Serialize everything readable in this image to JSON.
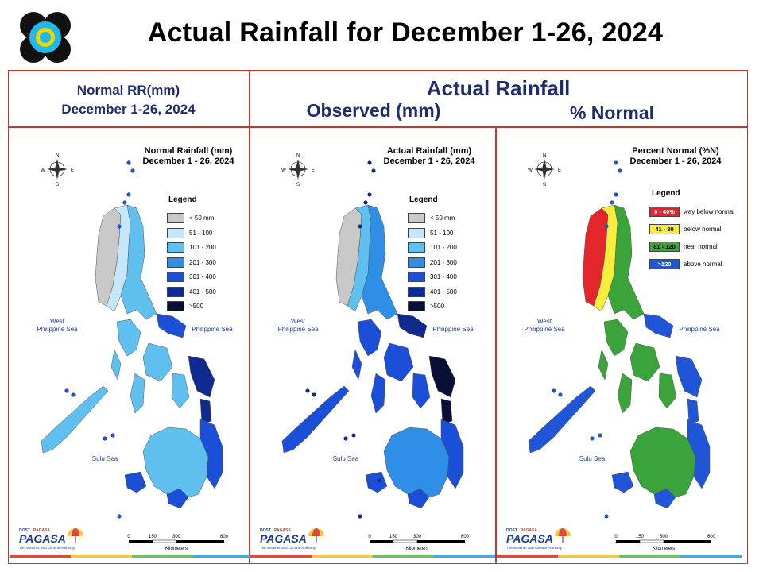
{
  "page": {
    "title": "Actual Rainfall for December 1-26, 2024"
  },
  "headers": {
    "normal_line1": "Normal RR(mm)",
    "normal_line2": "December 1-26, 2024",
    "actual": "Actual Rainfall",
    "observed": "Observed (mm)",
    "percent": "% Normal"
  },
  "panels": [
    {
      "id": "normal",
      "title_line1": "Normal Rainfall (mm)",
      "title_line2": "December 1 - 26, 2024",
      "legend_title": "Legend",
      "legend": [
        {
          "label": "< 50 mm",
          "color": "#c8c8c8"
        },
        {
          "label": "51 - 100",
          "color": "#c6e6fa"
        },
        {
          "label": "101 - 200",
          "color": "#5fc0f0"
        },
        {
          "label": "201 - 300",
          "color": "#2f8fe6"
        },
        {
          "label": "301 - 400",
          "color": "#1b4fd8"
        },
        {
          "label": "401 - 500",
          "color": "#0f2a8f"
        },
        {
          "label": ">500",
          "color": "#0a0f35"
        }
      ],
      "sea_west_line1": "West",
      "sea_west_line2": "Philippine Sea",
      "sea_east": "Philippine Sea",
      "sea_sulu": "Sulu Sea"
    },
    {
      "id": "observed",
      "title_line1": "Actual Rainfall (mm)",
      "title_line2": "December 1 - 26, 2024",
      "legend_title": "Legend",
      "legend": [
        {
          "label": "< 50 mm",
          "color": "#c8c8c8"
        },
        {
          "label": "51 - 100",
          "color": "#c6e6fa"
        },
        {
          "label": "101 - 200",
          "color": "#5fc0f0"
        },
        {
          "label": "201 - 300",
          "color": "#2f8fe6"
        },
        {
          "label": "301 - 400",
          "color": "#1b4fd8"
        },
        {
          "label": "401 - 500",
          "color": "#0f2a8f"
        },
        {
          "label": ">500",
          "color": "#0a0f35"
        }
      ],
      "sea_west_line1": "West",
      "sea_west_line2": "Philippine Sea",
      "sea_east": "Philippine Sea",
      "sea_sulu": "Sulu Sea"
    },
    {
      "id": "percent",
      "title_line1": "Percent Normal (%N)",
      "title_line2": "December 1 - 26, 2024",
      "legend_title": "Legend",
      "legend": [
        {
          "range": "0 - 40%",
          "label": "way below normal",
          "color": "#e3262b",
          "text_color": "#ffffff"
        },
        {
          "range": "41 - 80",
          "label": "below normal",
          "color": "#f7ee3b",
          "text_color": "#000000"
        },
        {
          "range": "81 - 120",
          "label": "near normal",
          "color": "#3aa33a",
          "text_color": "#000000"
        },
        {
          "range": ">120",
          "label": "above normal",
          "color": "#1f55d6",
          "text_color": "#ffffff"
        }
      ],
      "sea_west_line1": "West",
      "sea_west_line2": "Philippine Sea",
      "sea_east": "Philippine Sea",
      "sea_sulu": "Sulu Sea"
    }
  ],
  "compass": {
    "n": "N",
    "s": "S",
    "w": "W",
    "e": "E"
  },
  "scale_bar": {
    "ticks": [
      "0",
      "150",
      "300",
      "600"
    ],
    "unit": "Kilometers"
  },
  "footer": {
    "agency_top": "DOST",
    "agency_small": "PAGASA",
    "brand": "PAGASA",
    "tagline": "The Weather and Climate Authority"
  },
  "footer_colors": [
    "#d94c3d",
    "#f2c744",
    "#6cbf6c",
    "#4aa6dc"
  ],
  "map_colors": {
    "normal": {
      "north_west": "#c8c8c8",
      "north_mid": "#c6e6fa",
      "north_east": "#5fc0f0",
      "central": "#5fc0f0",
      "east": "#1b4fd8",
      "samar": "#0f2a8f",
      "palawan": "#5fc0f0",
      "mindanao": "#5fc0f0",
      "mindanao_east": "#1b4fd8"
    },
    "observed": {
      "north_west": "#c8c8c8",
      "north_mid": "#5fc0f0",
      "north_east": "#2f8fe6",
      "central": "#1b4fd8",
      "east": "#0f2a8f",
      "samar": "#0a0f35",
      "palawan": "#1b4fd8",
      "mindanao": "#2f8fe6",
      "mindanao_east": "#1b4fd8"
    },
    "percent": {
      "north_west": "#e3262b",
      "north_mid": "#f7ee3b",
      "north_east": "#3aa33a",
      "central": "#3aa33a",
      "east": "#1f55d6",
      "samar": "#1f55d6",
      "palawan": "#1f55d6",
      "mindanao": "#3aa33a",
      "mindanao_east": "#1f55d6"
    }
  }
}
